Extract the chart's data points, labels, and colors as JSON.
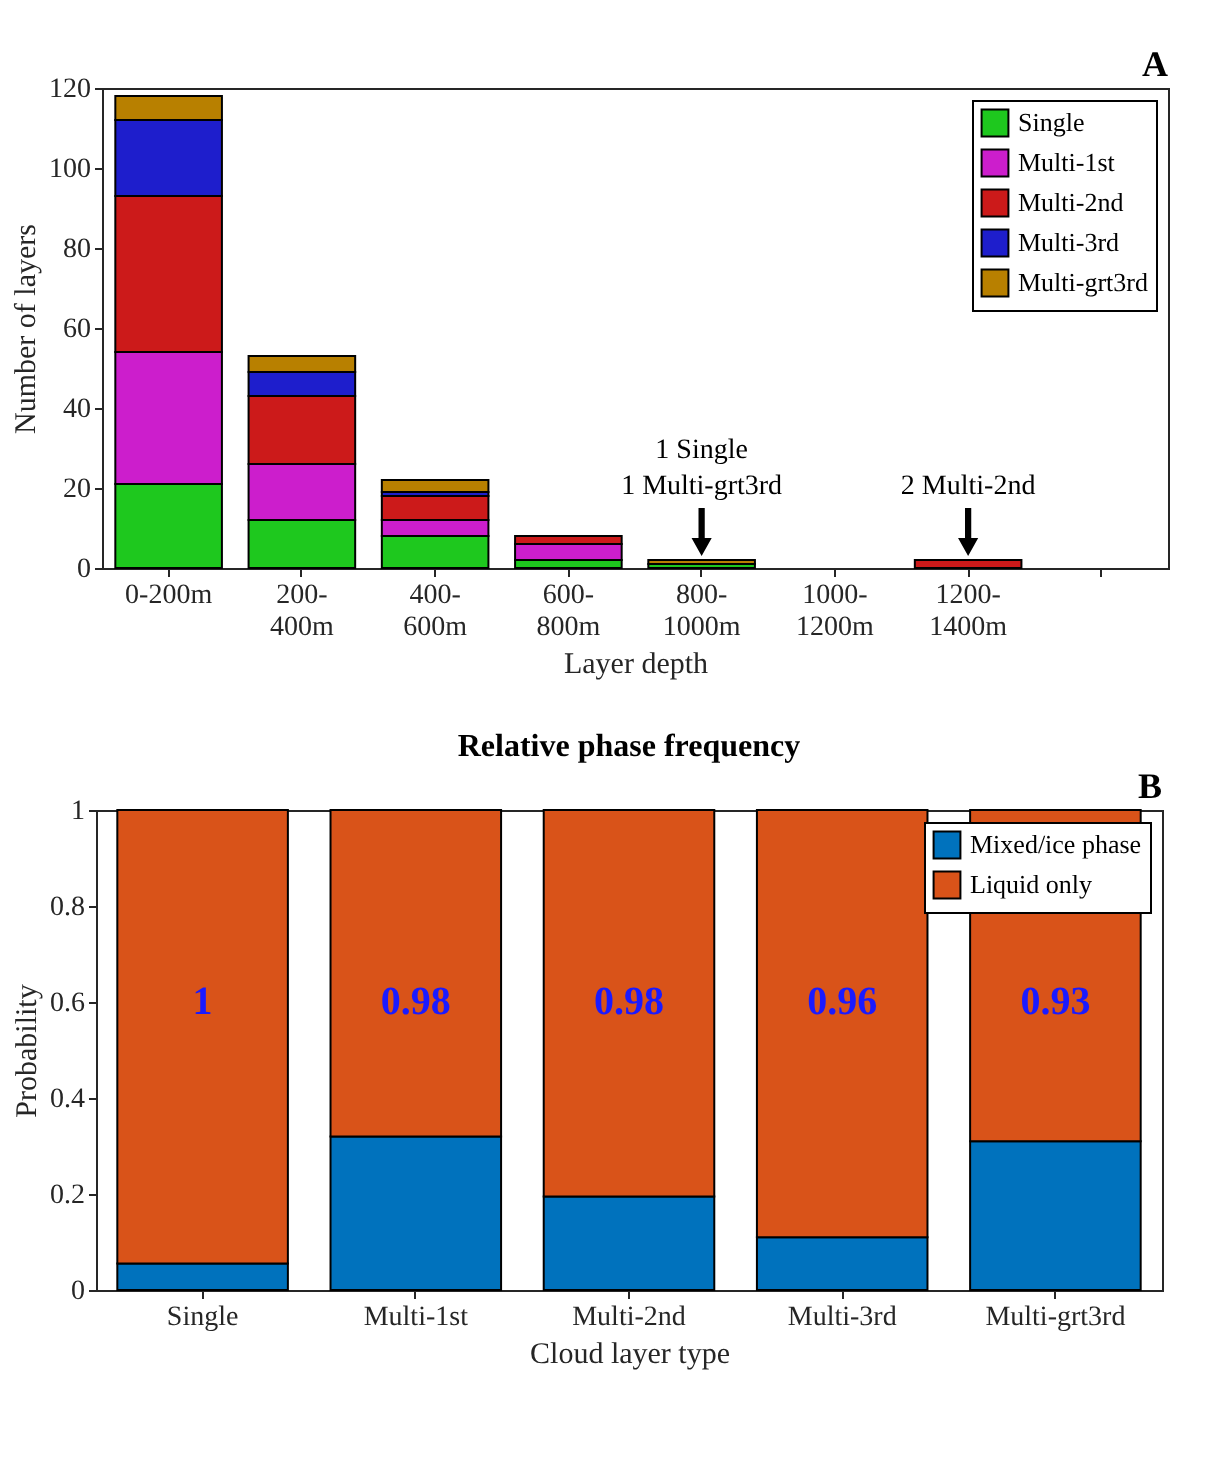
{
  "chart_data": [
    {
      "type": "bar",
      "stacked": true,
      "xlabel": "Layer depth",
      "ylabel": "Number of layers",
      "categories": [
        "0-200m",
        "200-400m",
        "400-600m",
        "600-800m",
        "800-1000m",
        "1000-1200m",
        "1200-1400m",
        null
      ],
      "series": [
        {
          "name": "Single",
          "color": "#1ec81e",
          "values": [
            21,
            12,
            8,
            2,
            1,
            0,
            0,
            0
          ]
        },
        {
          "name": "Multi-1st",
          "color": "#cc1ecc",
          "values": [
            33,
            14,
            4,
            4,
            0,
            0,
            0,
            0
          ]
        },
        {
          "name": "Multi-2nd",
          "color": "#cc1a1a",
          "values": [
            39,
            17,
            6,
            2,
            0,
            0,
            2,
            0
          ]
        },
        {
          "name": "Multi-3rd",
          "color": "#1e1ecc",
          "values": [
            19,
            6,
            1,
            0,
            0,
            0,
            0,
            0
          ]
        },
        {
          "name": "Multi-grt3rd",
          "color": "#b88000",
          "values": [
            6,
            4,
            3,
            0,
            1,
            0,
            0,
            0
          ]
        }
      ],
      "ylim": [
        0,
        120
      ],
      "yticks": [
        0,
        20,
        40,
        60,
        80,
        100,
        120
      ],
      "grid": false,
      "legend": "top right",
      "annotations": [
        "A",
        {
          "text": "1 Single\n1 Multi-grt3rd",
          "x": "800-1000m",
          "y": 2
        },
        {
          "text": "2 Multi-2nd",
          "x": "1200-1400m",
          "y": 2
        }
      ]
    },
    {
      "type": "bar",
      "stacked": true,
      "title": "Relative phase frequency",
      "xlabel": "Cloud layer type",
      "ylabel": "Probability",
      "categories": [
        "Single",
        "Multi-1st",
        "Multi-2nd",
        "Multi-3rd",
        "Multi-grt3rd"
      ],
      "series": [
        {
          "name": "Mixed/ice phase",
          "color": "#0072bd",
          "values": [
            0.055,
            0.32,
            0.195,
            0.11,
            0.31
          ]
        },
        {
          "name": "Liquid only",
          "color": "#d95319",
          "values": [
            0.945,
            0.68,
            0.805,
            0.89,
            0.69
          ]
        }
      ],
      "ylim": [
        0,
        1
      ],
      "yticks": [
        0,
        0.2,
        0.4,
        0.6,
        0.8,
        1
      ],
      "grid": false,
      "legend": "top right",
      "annotations": [
        "B",
        "1",
        "0.98",
        "0.98",
        "0.96",
        "0.93"
      ]
    }
  ]
}
